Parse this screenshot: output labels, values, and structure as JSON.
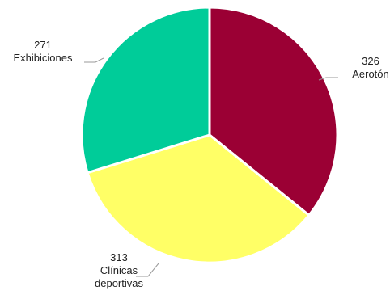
{
  "chart_data": {
    "type": "pie",
    "title": "",
    "slices": [
      {
        "label": "Aerotón",
        "value": 326,
        "color": "#9b0034"
      },
      {
        "label": "Clínicas deportivas",
        "value": 313,
        "color": "#ffff66"
      },
      {
        "label": "Exhibiciones",
        "value": 271,
        "color": "#00cc99"
      }
    ],
    "legend": "none",
    "data_labels": "outside"
  }
}
